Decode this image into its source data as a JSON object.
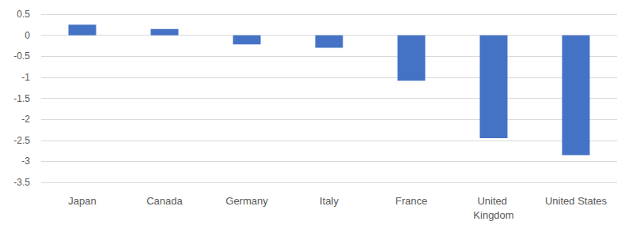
{
  "chart_data": {
    "type": "bar",
    "categories": [
      "Japan",
      "Canada",
      "Germany",
      "Italy",
      "France",
      "United Kingdom",
      "United States"
    ],
    "values": [
      0.25,
      0.15,
      -0.22,
      -0.3,
      -1.08,
      -2.45,
      -2.85
    ],
    "color": "#4472c4",
    "ylim": [
      -3.5,
      0.5
    ],
    "yticks": [
      -3.5,
      -3,
      -2.5,
      -2,
      -1.5,
      -1,
      -0.5,
      0,
      0.5
    ],
    "grid": true
  }
}
